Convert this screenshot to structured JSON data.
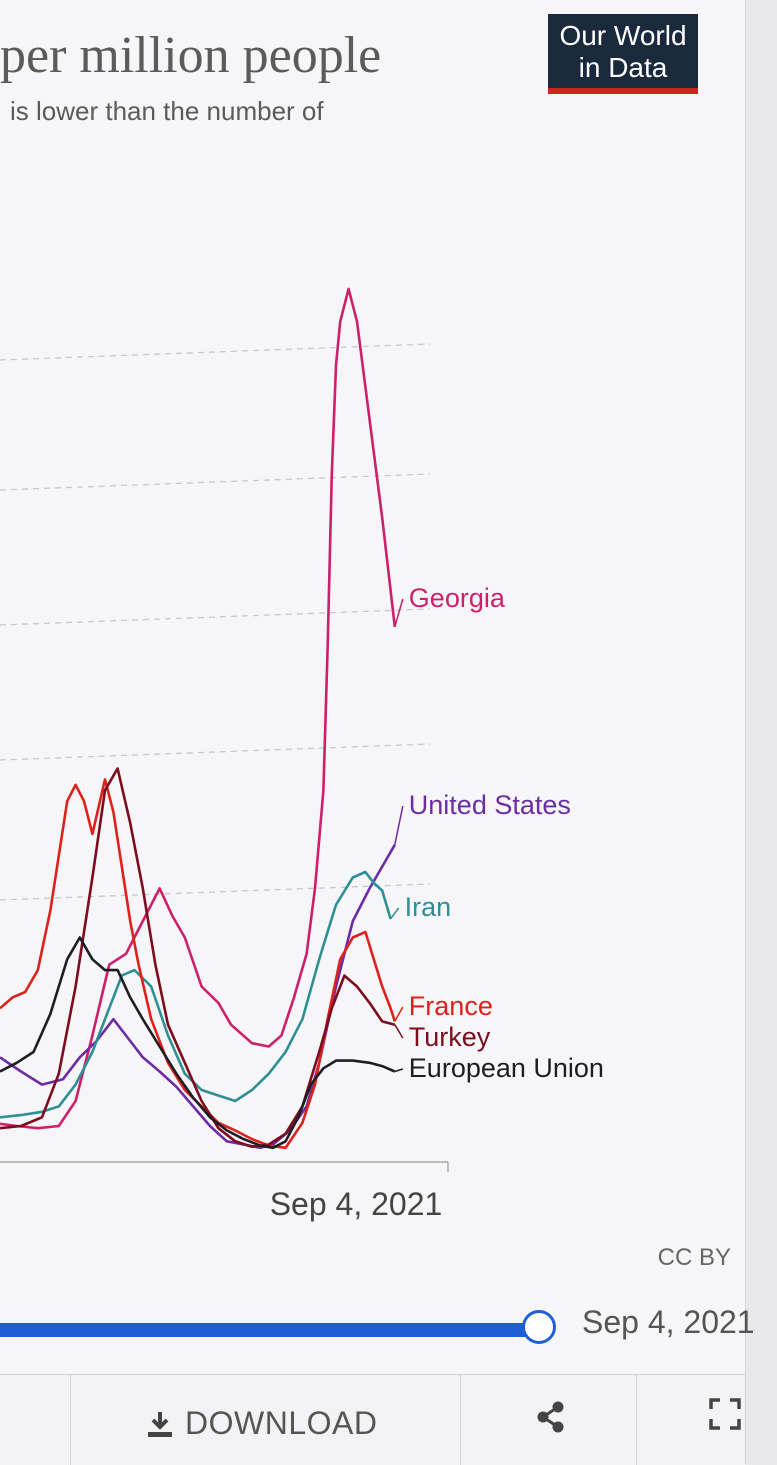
{
  "header": {
    "title": "per million people",
    "subtitle": "is lower than the number of",
    "logo": [
      "Our World",
      "in Data"
    ]
  },
  "footer": {
    "license": "CC BY",
    "slider_date": "Sep 4, 2021",
    "download_label": "DOWNLOAD"
  },
  "icons": {
    "download": "download-icon",
    "share": "share-icon",
    "fullscreen": "fullscreen-icon"
  },
  "colors": {
    "accent": "#1f5fd6",
    "logo_bg": "#1a2a3c",
    "logo_bar": "#ce261e"
  },
  "chart_data": {
    "type": "line",
    "title": "per million people",
    "xlabel": "",
    "ylabel": "",
    "x_tick_labels": [
      "Sep 4, 2021"
    ],
    "grid": "horizontal dashed",
    "x_end": 1.0,
    "series": [
      {
        "name": "Georgia",
        "color": "#cc1f6c",
        "points": [
          [
            0.0,
            24
          ],
          [
            0.04,
            22
          ],
          [
            0.09,
            20
          ],
          [
            0.14,
            22
          ],
          [
            0.18,
            45
          ],
          [
            0.22,
            105
          ],
          [
            0.26,
            170
          ],
          [
            0.3,
            180
          ],
          [
            0.34,
            210
          ],
          [
            0.38,
            240
          ],
          [
            0.41,
            215
          ],
          [
            0.44,
            195
          ],
          [
            0.48,
            150
          ],
          [
            0.52,
            135
          ],
          [
            0.55,
            115
          ],
          [
            0.6,
            98
          ],
          [
            0.64,
            95
          ],
          [
            0.67,
            105
          ],
          [
            0.7,
            140
          ],
          [
            0.73,
            180
          ],
          [
            0.75,
            240
          ],
          [
            0.77,
            330
          ],
          [
            0.78,
            460
          ],
          [
            0.79,
            620
          ],
          [
            0.8,
            720
          ],
          [
            0.81,
            760
          ],
          [
            0.83,
            790
          ],
          [
            0.85,
            760
          ],
          [
            0.87,
            700
          ],
          [
            0.89,
            640
          ],
          [
            0.91,
            580
          ],
          [
            0.94,
            480
          ]
        ]
      },
      {
        "name": "United States",
        "color": "#6d2ca4",
        "points": [
          [
            0.0,
            85
          ],
          [
            0.05,
            72
          ],
          [
            0.1,
            60
          ],
          [
            0.15,
            65
          ],
          [
            0.19,
            85
          ],
          [
            0.23,
            100
          ],
          [
            0.27,
            120
          ],
          [
            0.3,
            105
          ],
          [
            0.34,
            85
          ],
          [
            0.38,
            72
          ],
          [
            0.42,
            58
          ],
          [
            0.46,
            40
          ],
          [
            0.5,
            22
          ],
          [
            0.54,
            8
          ],
          [
            0.58,
            5
          ],
          [
            0.62,
            2
          ],
          [
            0.65,
            5
          ],
          [
            0.69,
            18
          ],
          [
            0.73,
            40
          ],
          [
            0.76,
            80
          ],
          [
            0.8,
            150
          ],
          [
            0.84,
            210
          ],
          [
            0.88,
            240
          ],
          [
            0.91,
            260
          ],
          [
            0.94,
            280
          ]
        ]
      },
      {
        "name": "Iran",
        "color": "#2e8f95",
        "points": [
          [
            0.0,
            30
          ],
          [
            0.05,
            32
          ],
          [
            0.1,
            35
          ],
          [
            0.14,
            40
          ],
          [
            0.18,
            60
          ],
          [
            0.22,
            90
          ],
          [
            0.26,
            130
          ],
          [
            0.29,
            160
          ],
          [
            0.32,
            165
          ],
          [
            0.36,
            150
          ],
          [
            0.4,
            105
          ],
          [
            0.44,
            70
          ],
          [
            0.48,
            55
          ],
          [
            0.52,
            50
          ],
          [
            0.56,
            45
          ],
          [
            0.6,
            55
          ],
          [
            0.64,
            70
          ],
          [
            0.68,
            90
          ],
          [
            0.72,
            120
          ],
          [
            0.76,
            175
          ],
          [
            0.8,
            225
          ],
          [
            0.84,
            250
          ],
          [
            0.87,
            255
          ],
          [
            0.89,
            245
          ],
          [
            0.91,
            238
          ],
          [
            0.93,
            212
          ]
        ]
      },
      {
        "name": "France",
        "color": "#e0201c",
        "points": [
          [
            0.0,
            130
          ],
          [
            0.03,
            140
          ],
          [
            0.06,
            145
          ],
          [
            0.09,
            165
          ],
          [
            0.12,
            220
          ],
          [
            0.14,
            270
          ],
          [
            0.16,
            320
          ],
          [
            0.18,
            335
          ],
          [
            0.2,
            320
          ],
          [
            0.22,
            290
          ],
          [
            0.25,
            340
          ],
          [
            0.27,
            310
          ],
          [
            0.29,
            260
          ],
          [
            0.31,
            210
          ],
          [
            0.33,
            170
          ],
          [
            0.36,
            120
          ],
          [
            0.4,
            80
          ],
          [
            0.44,
            55
          ],
          [
            0.48,
            40
          ],
          [
            0.52,
            25
          ],
          [
            0.56,
            18
          ],
          [
            0.6,
            10
          ],
          [
            0.64,
            4
          ],
          [
            0.68,
            2
          ],
          [
            0.72,
            25
          ],
          [
            0.75,
            60
          ],
          [
            0.78,
            120
          ],
          [
            0.81,
            175
          ],
          [
            0.84,
            195
          ],
          [
            0.87,
            200
          ],
          [
            0.89,
            175
          ],
          [
            0.91,
            150
          ],
          [
            0.93,
            130
          ],
          [
            0.94,
            118
          ]
        ]
      },
      {
        "name": "Turkey",
        "color": "#7d0c1e",
        "points": [
          [
            0.0,
            20
          ],
          [
            0.05,
            22
          ],
          [
            0.1,
            30
          ],
          [
            0.14,
            70
          ],
          [
            0.18,
            150
          ],
          [
            0.22,
            250
          ],
          [
            0.25,
            330
          ],
          [
            0.28,
            350
          ],
          [
            0.31,
            300
          ],
          [
            0.34,
            240
          ],
          [
            0.37,
            170
          ],
          [
            0.4,
            115
          ],
          [
            0.44,
            80
          ],
          [
            0.48,
            45
          ],
          [
            0.52,
            20
          ],
          [
            0.56,
            8
          ],
          [
            0.6,
            3
          ],
          [
            0.64,
            5
          ],
          [
            0.68,
            15
          ],
          [
            0.72,
            40
          ],
          [
            0.76,
            90
          ],
          [
            0.79,
            130
          ],
          [
            0.82,
            160
          ],
          [
            0.85,
            150
          ],
          [
            0.88,
            135
          ],
          [
            0.91,
            118
          ],
          [
            0.94,
            115
          ]
        ]
      },
      {
        "name": "European Union",
        "color": "#1e1e22",
        "points": [
          [
            0.0,
            72
          ],
          [
            0.04,
            80
          ],
          [
            0.08,
            90
          ],
          [
            0.12,
            125
          ],
          [
            0.16,
            175
          ],
          [
            0.19,
            195
          ],
          [
            0.22,
            175
          ],
          [
            0.25,
            165
          ],
          [
            0.28,
            165
          ],
          [
            0.31,
            140
          ],
          [
            0.34,
            120
          ],
          [
            0.38,
            95
          ],
          [
            0.42,
            70
          ],
          [
            0.46,
            48
          ],
          [
            0.5,
            30
          ],
          [
            0.54,
            18
          ],
          [
            0.58,
            10
          ],
          [
            0.62,
            4
          ],
          [
            0.65,
            2
          ],
          [
            0.68,
            8
          ],
          [
            0.71,
            30
          ],
          [
            0.74,
            60
          ],
          [
            0.77,
            75
          ],
          [
            0.8,
            82
          ],
          [
            0.84,
            82
          ],
          [
            0.88,
            80
          ],
          [
            0.91,
            77
          ],
          [
            0.94,
            72
          ]
        ]
      }
    ]
  }
}
